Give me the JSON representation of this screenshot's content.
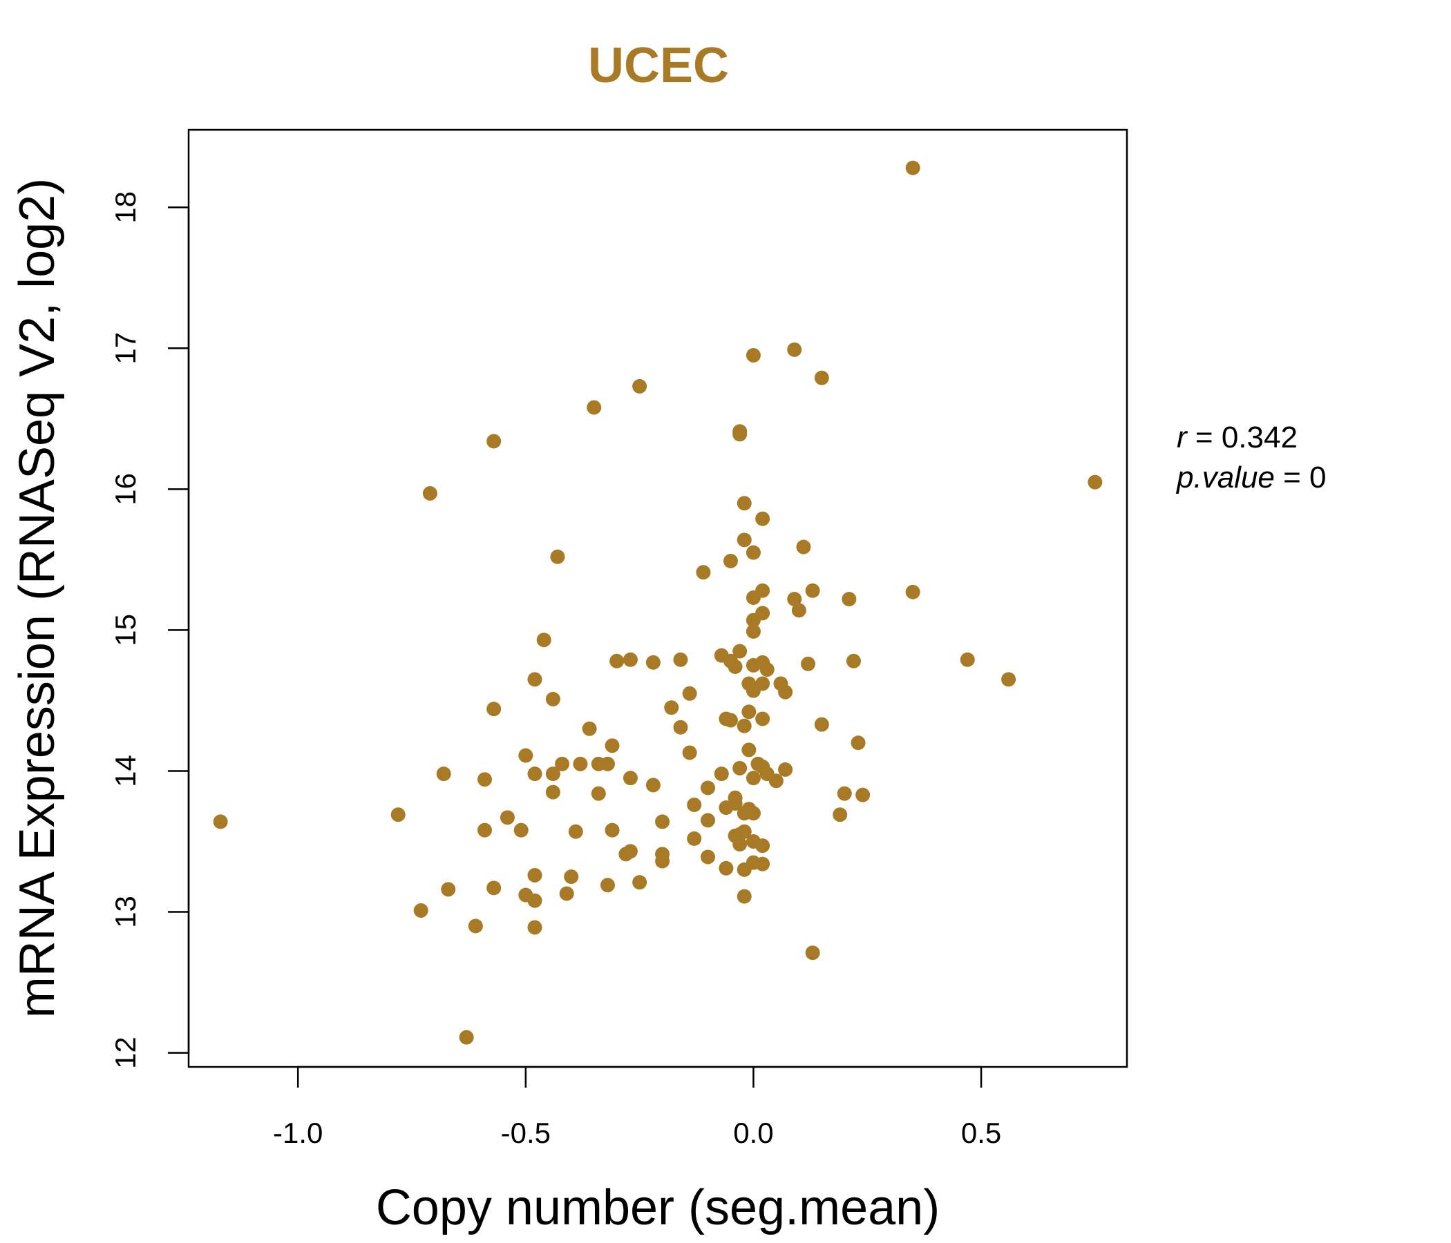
{
  "chart_data": {
    "type": "scatter",
    "title": "UCEC",
    "xlabel": "Copy number (seg.mean)",
    "ylabel": "mRNA Expression (RNASeq V2, log2)",
    "xlim": [
      -1.24,
      0.82
    ],
    "ylim": [
      11.9,
      18.55
    ],
    "xticks": [
      -1.0,
      -0.5,
      0.0,
      0.5
    ],
    "xtick_labels": [
      "-1.0",
      "-0.5",
      "0.0",
      "0.5"
    ],
    "yticks": [
      12,
      13,
      14,
      15,
      16,
      17,
      18
    ],
    "ytick_labels": [
      "12",
      "13",
      "14",
      "15",
      "16",
      "17",
      "18"
    ],
    "grid": false,
    "legend": "none",
    "color": "#A87A25",
    "annotations": {
      "r_label": "r",
      "r_value": "0.342",
      "p_label": "p.value",
      "p_value": "0"
    },
    "x": [
      0.35,
      -0.0,
      0.09,
      0.15,
      -0.25,
      -0.35,
      -0.57,
      -0.03,
      -0.03,
      -0.71,
      0.75,
      -0.02,
      0.02,
      -0.02,
      0.11,
      0.0,
      -0.43,
      -0.05,
      -0.11,
      0.13,
      0.35,
      0.0,
      0.02,
      0.09,
      0.1,
      0.21,
      0.0,
      0.02,
      0.0,
      -0.46,
      -0.05,
      -0.03,
      0.47,
      -0.3,
      -0.27,
      -0.22,
      -0.16,
      -0.07,
      -0.04,
      0.0,
      0.02,
      0.03,
      0.12,
      0.22,
      -0.01,
      -0.48,
      0.02,
      0.0,
      0.06,
      0.07,
      0.56,
      -0.14,
      -0.57,
      -0.44,
      -0.18,
      -0.01,
      -0.06,
      -0.05,
      -0.02,
      0.02,
      0.15,
      -0.16,
      -0.36,
      -0.31,
      -0.32,
      -0.38,
      -0.14,
      -0.01,
      0.01,
      -0.34,
      -0.42,
      -0.5,
      -0.44,
      -0.48,
      -0.68,
      -0.59,
      -0.34,
      -0.27,
      -0.22,
      -0.44,
      -0.07,
      -0.03,
      0.02,
      0.03,
      0.0,
      0.07,
      0.05,
      0.23,
      -0.1,
      -0.04,
      -0.01,
      -0.04,
      0.2,
      0.24,
      -0.02,
      -0.13,
      -0.78,
      -1.17,
      -0.06,
      -0.1,
      0.0,
      0.19,
      -0.54,
      -0.2,
      -0.51,
      -0.39,
      -0.31,
      -0.59,
      -0.03,
      -0.04,
      -0.13,
      0.0,
      -0.02,
      -0.03,
      0.02,
      -0.27,
      -0.28,
      -0.2,
      -0.1,
      -0.2,
      0.02,
      0.0,
      -0.06,
      -0.02,
      -0.4,
      -0.48,
      -0.25,
      -0.32,
      -0.57,
      -0.67,
      -0.41,
      -0.5,
      -0.48,
      -0.02,
      -0.73,
      -0.61,
      -0.48,
      0.13,
      -0.63
    ],
    "y": [
      18.28,
      16.95,
      16.99,
      16.79,
      16.73,
      16.58,
      16.34,
      16.41,
      16.39,
      15.97,
      16.05,
      15.9,
      15.79,
      15.64,
      15.59,
      15.55,
      15.52,
      15.49,
      15.41,
      15.28,
      15.27,
      15.23,
      15.28,
      15.22,
      15.14,
      15.22,
      15.07,
      15.12,
      14.99,
      14.93,
      14.78,
      14.85,
      14.79,
      14.78,
      14.79,
      14.77,
      14.79,
      14.82,
      14.74,
      14.75,
      14.77,
      14.72,
      14.76,
      14.78,
      14.62,
      14.65,
      14.62,
      14.57,
      14.62,
      14.56,
      14.65,
      14.55,
      14.44,
      14.51,
      14.45,
      14.42,
      14.37,
      14.36,
      14.32,
      14.37,
      14.33,
      14.31,
      14.3,
      14.18,
      14.05,
      14.05,
      14.13,
      14.15,
      14.05,
      14.05,
      14.05,
      14.11,
      13.98,
      13.98,
      13.98,
      13.94,
      13.84,
      13.95,
      13.9,
      13.85,
      13.98,
      14.02,
      14.03,
      13.98,
      13.95,
      14.01,
      13.93,
      14.2,
      13.88,
      13.81,
      13.73,
      13.77,
      13.84,
      13.83,
      13.7,
      13.76,
      13.69,
      13.64,
      13.74,
      13.65,
      13.7,
      13.69,
      13.67,
      13.64,
      13.58,
      13.57,
      13.58,
      13.58,
      13.55,
      13.54,
      13.52,
      13.5,
      13.57,
      13.48,
      13.47,
      13.43,
      13.41,
      13.41,
      13.39,
      13.36,
      13.34,
      13.35,
      13.31,
      13.3,
      13.25,
      13.26,
      13.21,
      13.19,
      13.17,
      13.16,
      13.13,
      13.12,
      13.08,
      13.11,
      13.01,
      12.9,
      12.89,
      12.71,
      12.11
    ]
  }
}
